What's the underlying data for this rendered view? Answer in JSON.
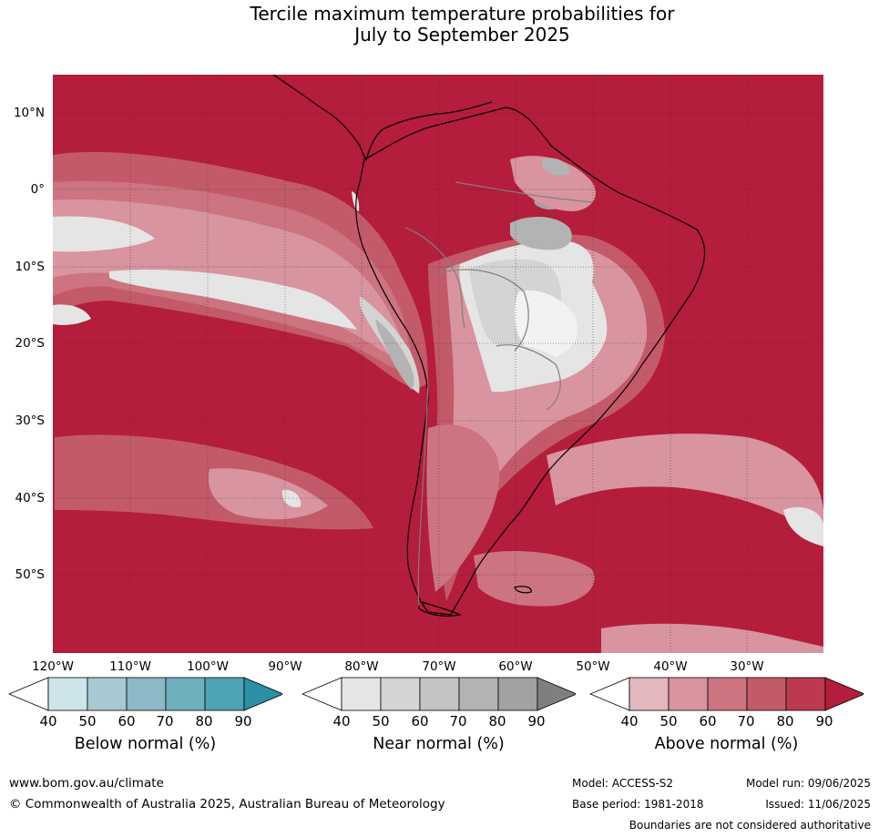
{
  "title_line1": "Tercile maximum temperature probabilities for",
  "title_line2": "July to September 2025",
  "lat_labels": [
    "10°N",
    "0°",
    "10°S",
    "20°S",
    "30°S",
    "40°S",
    "50°S"
  ],
  "lon_labels": [
    "120°W",
    "110°W",
    "100°W",
    "90°W",
    "80°W",
    "70°W",
    "60°W",
    "50°W",
    "40°W",
    "30°W"
  ],
  "legend": {
    "ticks": [
      "40",
      "50",
      "60",
      "70",
      "80",
      "90"
    ],
    "below": {
      "title": "Below normal (%)",
      "colors": [
        "#ffffff",
        "#cde4ea",
        "#a8c9d1",
        "#8cb9c5",
        "#6fb0bf",
        "#4ea3b4",
        "#2b8fa6"
      ]
    },
    "near": {
      "title": "Near normal (%)",
      "colors": [
        "#ffffff",
        "#e5e5e5",
        "#d4d4d4",
        "#c4c4c4",
        "#b3b3b3",
        "#a2a2a2",
        "#7f7f7f"
      ]
    },
    "above": {
      "title": "Above normal (%)",
      "colors": [
        "#ffffff",
        "#e2b7be",
        "#d8949f",
        "#cc7480",
        "#c35a69",
        "#bb3a4f",
        "#b41d3b"
      ]
    }
  },
  "map_colors": {
    "above_90": "#b41d3b",
    "above_80": "#bb3a4f",
    "above_70": "#c35a69",
    "above_60": "#cc7480",
    "above_50": "#d8949f",
    "above_40": "#e2b7be",
    "near_40": "#e5e5e5",
    "near_50": "#d4d4d4",
    "near_70": "#b3b3b3",
    "near_80": "#a2a2a2"
  },
  "footer": {
    "website": "www.bom.gov.au/climate",
    "copyright": "© Commonwealth of Australia 2025, Australian Bureau of Meteorology",
    "model": "Model: ACCESS-S2",
    "base_period": "Base period: 1981-2018",
    "model_run": "Model run: 09/06/2025",
    "issued": "Issued: 11/06/2025",
    "disclaimer": "Boundaries are not considered authoritative"
  }
}
